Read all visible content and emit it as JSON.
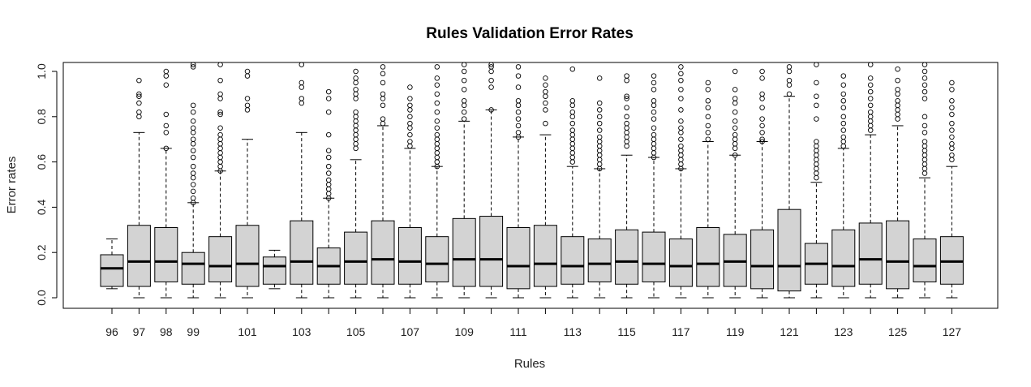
{
  "chart_data": {
    "type": "boxplot",
    "title": "Rules Validation Error Rates",
    "xlabel": "Rules",
    "ylabel": "Error rates",
    "ylim": [
      -0.04,
      1.04
    ],
    "yticks": [
      "0.0",
      "0.2",
      "0.4",
      "0.6",
      "0.8",
      "1.0"
    ],
    "grid": false,
    "legend": "none",
    "box_fill": "#d3d3d3",
    "stroke_color": "#000000",
    "boxes": [
      {
        "rule": "96",
        "label": "96",
        "min": 0.04,
        "q1": 0.05,
        "median": 0.13,
        "q3": 0.19,
        "max": 0.26,
        "outliers": []
      },
      {
        "rule": "97",
        "label": "97",
        "min": 0.0,
        "q1": 0.05,
        "median": 0.16,
        "q3": 0.32,
        "max": 0.73,
        "outliers": [
          0.8,
          0.82,
          0.86,
          0.89,
          0.9,
          0.96
        ]
      },
      {
        "rule": "98",
        "label": "98",
        "min": 0.0,
        "q1": 0.07,
        "median": 0.16,
        "q3": 0.31,
        "max": 0.66,
        "outliers": [
          0.66,
          0.73,
          0.76,
          0.81,
          0.94,
          0.98,
          1.0
        ]
      },
      {
        "rule": "99",
        "label": "99",
        "min": 0.0,
        "q1": 0.06,
        "median": 0.15,
        "q3": 0.2,
        "max": 0.42,
        "outliers": [
          0.42,
          0.44,
          0.47,
          0.5,
          0.53,
          0.55,
          0.58,
          0.62,
          0.65,
          0.68,
          0.7,
          0.73,
          0.75,
          0.78,
          0.82,
          0.85,
          1.02,
          1.03
        ]
      },
      {
        "rule": "100",
        "label": "",
        "min": 0.0,
        "q1": 0.07,
        "median": 0.14,
        "q3": 0.27,
        "max": 0.56,
        "outliers": [
          0.56,
          0.58,
          0.6,
          0.62,
          0.64,
          0.66,
          0.68,
          0.7,
          0.72,
          0.75,
          0.81,
          0.82,
          0.88,
          0.9,
          0.96,
          1.03
        ]
      },
      {
        "rule": "101",
        "label": "101",
        "min": 0.0,
        "q1": 0.05,
        "median": 0.15,
        "q3": 0.32,
        "max": 0.7,
        "outliers": [
          0.83,
          0.85,
          0.88,
          0.98,
          1.0
        ]
      },
      {
        "rule": "102",
        "label": "",
        "min": 0.04,
        "q1": 0.06,
        "median": 0.14,
        "q3": 0.18,
        "max": 0.21,
        "outliers": []
      },
      {
        "rule": "103",
        "label": "103",
        "min": 0.0,
        "q1": 0.06,
        "median": 0.16,
        "q3": 0.34,
        "max": 0.73,
        "outliers": [
          0.86,
          0.88,
          0.93,
          0.95,
          1.03
        ]
      },
      {
        "rule": "104",
        "label": "",
        "min": 0.0,
        "q1": 0.06,
        "median": 0.14,
        "q3": 0.22,
        "max": 0.44,
        "outliers": [
          0.44,
          0.46,
          0.48,
          0.5,
          0.52,
          0.55,
          0.58,
          0.62,
          0.65,
          0.72,
          0.82,
          0.88,
          0.91
        ]
      },
      {
        "rule": "105",
        "label": "105",
        "min": 0.0,
        "q1": 0.06,
        "median": 0.16,
        "q3": 0.29,
        "max": 0.61,
        "outliers": [
          0.66,
          0.68,
          0.7,
          0.72,
          0.74,
          0.76,
          0.78,
          0.8,
          0.82,
          0.88,
          0.9,
          0.92,
          0.95,
          0.97,
          1.0
        ]
      },
      {
        "rule": "106",
        "label": "",
        "min": 0.0,
        "q1": 0.06,
        "median": 0.17,
        "q3": 0.34,
        "max": 0.76,
        "outliers": [
          0.77,
          0.79,
          0.85,
          0.88,
          0.9,
          0.95,
          0.99,
          1.02
        ]
      },
      {
        "rule": "107",
        "label": "107",
        "min": 0.0,
        "q1": 0.06,
        "median": 0.16,
        "q3": 0.31,
        "max": 0.66,
        "outliers": [
          0.67,
          0.69,
          0.72,
          0.75,
          0.77,
          0.8,
          0.83,
          0.85,
          0.88,
          0.93
        ]
      },
      {
        "rule": "108",
        "label": "",
        "min": 0.0,
        "q1": 0.07,
        "median": 0.15,
        "q3": 0.27,
        "max": 0.58,
        "outliers": [
          0.58,
          0.6,
          0.62,
          0.64,
          0.66,
          0.68,
          0.7,
          0.72,
          0.75,
          0.78,
          0.82,
          0.86,
          0.9,
          0.94,
          0.97,
          1.02
        ]
      },
      {
        "rule": "109",
        "label": "109",
        "min": 0.0,
        "q1": 0.05,
        "median": 0.17,
        "q3": 0.35,
        "max": 0.78,
        "outliers": [
          0.79,
          0.82,
          0.85,
          0.87,
          0.92,
          0.96,
          1.0,
          1.03
        ]
      },
      {
        "rule": "110",
        "label": "",
        "min": 0.0,
        "q1": 0.05,
        "median": 0.17,
        "q3": 0.36,
        "max": 0.83,
        "outliers": [
          0.83,
          0.93,
          0.96,
          1.0,
          1.02,
          1.03
        ]
      },
      {
        "rule": "111",
        "label": "111",
        "min": 0.0,
        "q1": 0.04,
        "median": 0.14,
        "q3": 0.31,
        "max": 0.71,
        "outliers": [
          0.71,
          0.73,
          0.76,
          0.79,
          0.82,
          0.85,
          0.87,
          0.93,
          0.98,
          1.02
        ]
      },
      {
        "rule": "112",
        "label": "",
        "min": 0.0,
        "q1": 0.05,
        "median": 0.15,
        "q3": 0.32,
        "max": 0.72,
        "outliers": [
          0.77,
          0.83,
          0.86,
          0.89,
          0.91,
          0.94,
          0.97,
          1.04
        ]
      },
      {
        "rule": "113",
        "label": "113",
        "min": 0.0,
        "q1": 0.06,
        "median": 0.14,
        "q3": 0.27,
        "max": 0.58,
        "outliers": [
          0.6,
          0.62,
          0.64,
          0.66,
          0.68,
          0.7,
          0.72,
          0.74,
          0.77,
          0.8,
          0.82,
          0.85,
          0.87,
          1.01,
          1.04
        ]
      },
      {
        "rule": "114",
        "label": "",
        "min": 0.0,
        "q1": 0.07,
        "median": 0.15,
        "q3": 0.26,
        "max": 0.57,
        "outliers": [
          0.57,
          0.59,
          0.61,
          0.63,
          0.65,
          0.67,
          0.69,
          0.71,
          0.74,
          0.77,
          0.8,
          0.83,
          0.86,
          0.97
        ]
      },
      {
        "rule": "115",
        "label": "115",
        "min": 0.0,
        "q1": 0.06,
        "median": 0.16,
        "q3": 0.3,
        "max": 0.63,
        "outliers": [
          0.67,
          0.69,
          0.71,
          0.73,
          0.75,
          0.77,
          0.8,
          0.84,
          0.88,
          0.89,
          0.96,
          0.98
        ]
      },
      {
        "rule": "116",
        "label": "",
        "min": 0.0,
        "q1": 0.07,
        "median": 0.15,
        "q3": 0.29,
        "max": 0.62,
        "outliers": [
          0.62,
          0.64,
          0.66,
          0.68,
          0.7,
          0.72,
          0.75,
          0.79,
          0.82,
          0.85,
          0.87,
          0.92,
          0.95,
          0.98
        ]
      },
      {
        "rule": "117",
        "label": "117",
        "min": 0.0,
        "q1": 0.05,
        "median": 0.14,
        "q3": 0.26,
        "max": 0.57,
        "outliers": [
          0.57,
          0.59,
          0.61,
          0.63,
          0.65,
          0.67,
          0.7,
          0.73,
          0.75,
          0.78,
          0.83,
          0.88,
          0.92,
          0.96,
          0.99,
          1.02
        ]
      },
      {
        "rule": "118",
        "label": "",
        "min": 0.0,
        "q1": 0.05,
        "median": 0.15,
        "q3": 0.31,
        "max": 0.69,
        "outliers": [
          0.7,
          0.73,
          0.76,
          0.8,
          0.84,
          0.87,
          0.92,
          0.95
        ]
      },
      {
        "rule": "119",
        "label": "119",
        "min": 0.0,
        "q1": 0.05,
        "median": 0.16,
        "q3": 0.28,
        "max": 0.63,
        "outliers": [
          0.63,
          0.66,
          0.68,
          0.7,
          0.72,
          0.75,
          0.78,
          0.82,
          0.86,
          0.88,
          0.92,
          1.0
        ]
      },
      {
        "rule": "120",
        "label": "",
        "min": 0.0,
        "q1": 0.04,
        "median": 0.14,
        "q3": 0.3,
        "max": 0.69,
        "outliers": [
          0.69,
          0.7,
          0.73,
          0.76,
          0.79,
          0.84,
          0.88,
          0.9,
          0.97,
          1.0
        ]
      },
      {
        "rule": "121",
        "label": "121",
        "min": 0.0,
        "q1": 0.03,
        "median": 0.14,
        "q3": 0.39,
        "max": 0.89,
        "outliers": [
          0.9,
          0.94,
          0.96,
          1.0,
          1.02
        ]
      },
      {
        "rule": "122",
        "label": "",
        "min": 0.0,
        "q1": 0.06,
        "median": 0.15,
        "q3": 0.24,
        "max": 0.51,
        "outliers": [
          0.53,
          0.55,
          0.57,
          0.59,
          0.61,
          0.63,
          0.65,
          0.67,
          0.69,
          0.79,
          0.85,
          0.89,
          0.95,
          1.03
        ]
      },
      {
        "rule": "123",
        "label": "123",
        "min": 0.0,
        "q1": 0.05,
        "median": 0.14,
        "q3": 0.3,
        "max": 0.66,
        "outliers": [
          0.67,
          0.69,
          0.71,
          0.74,
          0.77,
          0.8,
          0.84,
          0.87,
          0.9,
          0.94,
          0.98,
          1.04
        ]
      },
      {
        "rule": "124",
        "label": "",
        "min": 0.0,
        "q1": 0.06,
        "median": 0.17,
        "q3": 0.33,
        "max": 0.72,
        "outliers": [
          0.74,
          0.76,
          0.78,
          0.8,
          0.82,
          0.85,
          0.88,
          0.91,
          0.94,
          0.97,
          1.03
        ]
      },
      {
        "rule": "125",
        "label": "125",
        "min": 0.0,
        "q1": 0.04,
        "median": 0.16,
        "q3": 0.34,
        "max": 0.76,
        "outliers": [
          0.79,
          0.81,
          0.83,
          0.85,
          0.87,
          0.9,
          0.92,
          0.96,
          1.01
        ]
      },
      {
        "rule": "126",
        "label": "",
        "min": 0.0,
        "q1": 0.07,
        "median": 0.14,
        "q3": 0.26,
        "max": 0.53,
        "outliers": [
          0.55,
          0.57,
          0.59,
          0.61,
          0.63,
          0.65,
          0.67,
          0.69,
          0.73,
          0.76,
          0.8,
          0.88,
          0.91,
          0.94,
          0.97,
          1.0,
          1.03
        ]
      },
      {
        "rule": "127",
        "label": "127",
        "min": 0.0,
        "q1": 0.06,
        "median": 0.16,
        "q3": 0.27,
        "max": 0.58,
        "outliers": [
          0.61,
          0.63,
          0.66,
          0.68,
          0.71,
          0.74,
          0.77,
          0.81,
          0.84,
          0.87,
          0.92,
          0.95
        ]
      }
    ]
  }
}
